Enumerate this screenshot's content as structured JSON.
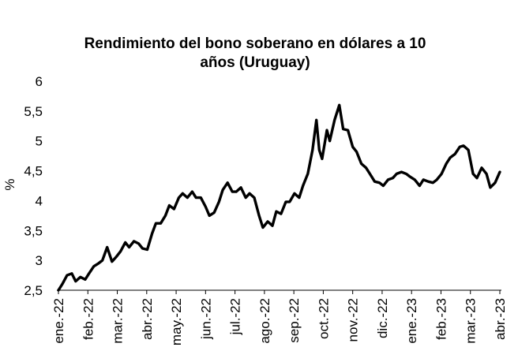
{
  "chart_data": {
    "type": "line",
    "title_line1": "Rendimiento del bono soberano en dólares a 10",
    "title_line2": "años (Uruguay)",
    "xlabel": "",
    "ylabel": "%",
    "ylim": [
      2.5,
      6
    ],
    "yticks": [
      "6",
      "5,5",
      "5",
      "4,5",
      "4",
      "3,5",
      "3",
      "2,5"
    ],
    "yticks_values": [
      6,
      5.5,
      5,
      4.5,
      4,
      3.5,
      3,
      2.5
    ],
    "xticks": [
      "ene.-22",
      "feb.-22",
      "mar.-22",
      "abr.-22",
      "may.-22",
      "jun.-22",
      "jul.-22",
      "ago.-22",
      "sep.-22",
      "oct.-22",
      "nov.-22",
      "dic.-22",
      "ene.-23",
      "feb.-23",
      "mar.-23",
      "abr.-23"
    ],
    "grid": false,
    "legend": "none",
    "line_color": "#000000",
    "series": [
      {
        "x": [
          "2022-01-03",
          "2022-01-07",
          "2022-01-12",
          "2022-01-17",
          "2022-01-21",
          "2022-01-26",
          "2022-01-31",
          "2022-02-04",
          "2022-02-09",
          "2022-02-14",
          "2022-02-18",
          "2022-02-23",
          "2022-02-28",
          "2022-03-04",
          "2022-03-09",
          "2022-03-14",
          "2022-03-18",
          "2022-03-23",
          "2022-03-28",
          "2022-04-01",
          "2022-04-06",
          "2022-04-11",
          "2022-04-15",
          "2022-04-20",
          "2022-04-25",
          "2022-04-29",
          "2022-05-04",
          "2022-05-09",
          "2022-05-13",
          "2022-05-18",
          "2022-05-23",
          "2022-05-27",
          "2022-06-01",
          "2022-06-06",
          "2022-06-10",
          "2022-06-15",
          "2022-06-20",
          "2022-06-24",
          "2022-06-29",
          "2022-07-04",
          "2022-07-08",
          "2022-07-13",
          "2022-07-18",
          "2022-07-22",
          "2022-07-27",
          "2022-08-01",
          "2022-08-05",
          "2022-08-10",
          "2022-08-15",
          "2022-08-19",
          "2022-08-24",
          "2022-08-29",
          "2022-09-02",
          "2022-09-07",
          "2022-09-12",
          "2022-09-16",
          "2022-09-21",
          "2022-09-26",
          "2022-09-30",
          "2022-10-03",
          "2022-10-06",
          "2022-10-11",
          "2022-10-14",
          "2022-10-19",
          "2022-10-24",
          "2022-10-28",
          "2022-11-02",
          "2022-11-07",
          "2022-11-11",
          "2022-11-16",
          "2022-11-21",
          "2022-11-25",
          "2022-11-30",
          "2022-12-05",
          "2022-12-09",
          "2022-12-14",
          "2022-12-19",
          "2022-12-23",
          "2022-12-28",
          "2023-01-02",
          "2023-01-06",
          "2023-01-11",
          "2023-01-16",
          "2023-01-20",
          "2023-01-25",
          "2023-01-30",
          "2023-02-03",
          "2023-02-08",
          "2023-02-13",
          "2023-02-17",
          "2023-02-22",
          "2023-02-27",
          "2023-03-03",
          "2023-03-08",
          "2023-03-13",
          "2023-03-17",
          "2023-03-22",
          "2023-03-27",
          "2023-03-31",
          "2023-04-05",
          "2023-04-10"
        ],
        "y": [
          2.5,
          2.6,
          2.75,
          2.78,
          2.65,
          2.72,
          2.68,
          2.78,
          2.9,
          2.95,
          3.0,
          3.22,
          2.98,
          3.05,
          3.15,
          3.3,
          3.22,
          3.32,
          3.28,
          3.2,
          3.18,
          3.45,
          3.62,
          3.62,
          3.75,
          3.92,
          3.86,
          4.05,
          4.12,
          4.05,
          4.15,
          4.05,
          4.05,
          3.9,
          3.75,
          3.8,
          3.98,
          4.18,
          4.3,
          4.15,
          4.15,
          4.22,
          4.05,
          4.12,
          4.05,
          3.75,
          3.55,
          3.65,
          3.58,
          3.82,
          3.78,
          3.98,
          3.98,
          4.12,
          4.05,
          4.25,
          4.45,
          4.85,
          5.35,
          4.85,
          4.7,
          5.18,
          5.0,
          5.35,
          5.6,
          5.2,
          5.18,
          4.9,
          4.82,
          4.62,
          4.55,
          4.45,
          4.32,
          4.3,
          4.25,
          4.35,
          4.38,
          4.45,
          4.48,
          4.45,
          4.4,
          4.35,
          4.25,
          4.35,
          4.32,
          4.3,
          4.35,
          4.45,
          4.62,
          4.72,
          4.78,
          4.9,
          4.92,
          4.85,
          4.45,
          4.38,
          4.55,
          4.45,
          4.22,
          4.3,
          4.48
        ]
      }
    ]
  }
}
